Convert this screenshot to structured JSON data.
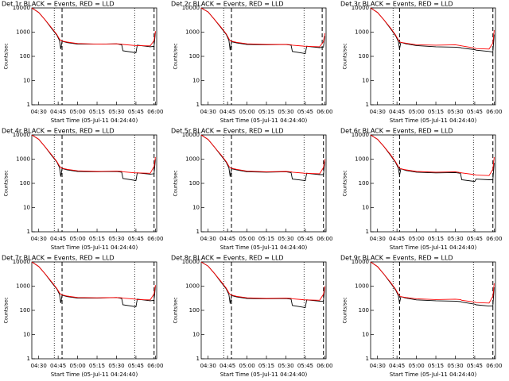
{
  "chart_data": [
    {
      "type": "line",
      "title": "Det 1r BLACK = Events, RED = LLD",
      "x_label": "Start Time (05-Jul-11 04:24:40)",
      "y_label": "Counts/sec",
      "log_y": true,
      "xlim": [
        "04:24:40",
        "06:01"
      ],
      "xticks": [
        "04:30",
        "04:45",
        "05:00",
        "05:15",
        "05:30",
        "05:45",
        "06:00"
      ],
      "ylim": [
        1,
        10000
      ],
      "yticks": [
        1,
        10,
        100,
        1000,
        10000
      ],
      "vlines": [
        {
          "x": "04:42",
          "style": "dotted"
        },
        {
          "x": "04:48",
          "style": "dashed"
        },
        {
          "x": "05:44",
          "style": "dotted"
        },
        {
          "x": "05:59",
          "style": "dashed"
        }
      ],
      "x": [
        "04:24:40",
        "04:30",
        "04:35",
        "04:40",
        "04:44",
        "04:46",
        "04:47",
        "04:48",
        "04:52",
        "05:00",
        "05:15",
        "05:30",
        "05:34",
        "05:35",
        "05:45",
        "05:46",
        "05:56",
        "05:59",
        "06:00"
      ],
      "series": [
        {
          "name": "Events",
          "color": "#000000",
          "values": [
            10000,
            6500,
            3200,
            1400,
            750,
            450,
            200,
            420,
            370,
            320,
            320,
            330,
            300,
            170,
            140,
            290,
            250,
            260,
            1000
          ]
        },
        {
          "name": "LLD",
          "color": "#ff0000",
          "values": [
            10000,
            6500,
            3200,
            1500,
            800,
            520,
            450,
            430,
            390,
            340,
            320,
            330,
            320,
            310,
            280,
            280,
            270,
            450,
            1100
          ]
        }
      ]
    },
    {
      "type": "line",
      "title": "Det 2r BLACK = Events, RED = LLD",
      "x_label": "Start Time (05-Jul-11 04:24:40)",
      "y_label": "Counts/sec",
      "log_y": true,
      "xlim": [
        "04:24:40",
        "06:01"
      ],
      "xticks": [
        "04:30",
        "04:45",
        "05:00",
        "05:15",
        "05:30",
        "05:45",
        "06:00"
      ],
      "ylim": [
        1,
        10000
      ],
      "yticks": [
        1,
        10,
        100,
        1000,
        10000
      ],
      "vlines": [
        {
          "x": "04:42",
          "style": "dotted"
        },
        {
          "x": "04:48",
          "style": "dashed"
        },
        {
          "x": "05:44",
          "style": "dotted"
        },
        {
          "x": "05:58",
          "style": "dashed"
        }
      ],
      "x": [
        "04:24:40",
        "04:30",
        "04:35",
        "04:40",
        "04:44",
        "04:46",
        "04:47",
        "04:48",
        "04:52",
        "05:00",
        "05:15",
        "05:30",
        "05:34",
        "05:35",
        "05:45",
        "05:46",
        "05:56",
        "05:59",
        "06:00"
      ],
      "series": [
        {
          "name": "Events",
          "color": "#000000",
          "values": [
            10000,
            6800,
            3300,
            1500,
            800,
            460,
            180,
            400,
            360,
            310,
            300,
            310,
            290,
            160,
            130,
            260,
            230,
            240,
            700
          ]
        },
        {
          "name": "LLD",
          "color": "#ff0000",
          "values": [
            10000,
            6800,
            3300,
            1600,
            850,
            540,
            440,
            420,
            380,
            330,
            310,
            310,
            300,
            290,
            260,
            260,
            250,
            400,
            900
          ]
        }
      ]
    },
    {
      "type": "line",
      "title": "Det 3r BLACK = Events, RED = LLD",
      "x_label": "Start Time (05-Jul-11 04:24:40)",
      "y_label": "Counts/sec",
      "log_y": true,
      "xlim": [
        "04:24:40",
        "06:01"
      ],
      "xticks": [
        "04:30",
        "04:45",
        "05:00",
        "05:15",
        "05:30",
        "05:45",
        "06:00"
      ],
      "ylim": [
        1,
        10000
      ],
      "yticks": [
        1,
        10,
        100,
        1000,
        10000
      ],
      "vlines": [
        {
          "x": "04:42",
          "style": "dotted"
        },
        {
          "x": "04:47",
          "style": "dashed"
        },
        {
          "x": "05:44",
          "style": "dotted"
        },
        {
          "x": "05:59",
          "style": "dashed"
        }
      ],
      "x": [
        "04:24:40",
        "04:30",
        "04:35",
        "04:40",
        "04:44",
        "04:46",
        "04:47",
        "04:48",
        "04:52",
        "05:00",
        "05:15",
        "05:30",
        "05:34",
        "05:35",
        "05:45",
        "05:46",
        "05:56",
        "05:59",
        "06:00"
      ],
      "series": [
        {
          "name": "Events",
          "color": "#000000",
          "values": [
            10000,
            6500,
            3200,
            1400,
            700,
            420,
            200,
            380,
            330,
            280,
            250,
            240,
            230,
            220,
            190,
            180,
            160,
            150,
            800
          ]
        },
        {
          "name": "LLD",
          "color": "#ff0000",
          "values": [
            10000,
            6500,
            3200,
            1500,
            750,
            480,
            400,
            380,
            350,
            300,
            290,
            300,
            280,
            270,
            220,
            210,
            200,
            350,
            1200
          ]
        }
      ]
    },
    {
      "type": "line",
      "title": "Det 4r BLACK = Events, RED = LLD",
      "x_label": "Start Time (05-Jul-11 04:24:40)",
      "y_label": "Counts/sec",
      "log_y": true,
      "xlim": [
        "04:24:40",
        "06:01"
      ],
      "xticks": [
        "04:30",
        "04:45",
        "05:00",
        "05:15",
        "05:30",
        "05:45",
        "06:00"
      ],
      "ylim": [
        1,
        10000
      ],
      "yticks": [
        1,
        10,
        100,
        1000,
        10000
      ],
      "vlines": [
        {
          "x": "04:42",
          "style": "dotted"
        },
        {
          "x": "04:48",
          "style": "dashed"
        },
        {
          "x": "05:44",
          "style": "dotted"
        },
        {
          "x": "05:59",
          "style": "dashed"
        }
      ],
      "x": [
        "04:24:40",
        "04:30",
        "04:35",
        "04:40",
        "04:44",
        "04:46",
        "04:47",
        "04:48",
        "04:52",
        "05:00",
        "05:15",
        "05:30",
        "05:34",
        "05:35",
        "05:45",
        "05:46",
        "05:56",
        "05:59",
        "06:00"
      ],
      "series": [
        {
          "name": "Events",
          "color": "#000000",
          "values": [
            10000,
            6600,
            3200,
            1400,
            760,
            450,
            190,
            410,
            360,
            310,
            300,
            310,
            290,
            160,
            130,
            270,
            240,
            250,
            1000
          ]
        },
        {
          "name": "LLD",
          "color": "#ff0000",
          "values": [
            10000,
            6600,
            3200,
            1500,
            800,
            520,
            450,
            420,
            380,
            330,
            310,
            320,
            310,
            300,
            270,
            270,
            260,
            500,
            1200
          ]
        }
      ]
    },
    {
      "type": "line",
      "title": "Det 5r BLACK = Events, RED = LLD",
      "x_label": "Start Time (05-Jul-11 04:24:40)",
      "y_label": "Counts/sec",
      "log_y": true,
      "xlim": [
        "04:24:40",
        "06:01"
      ],
      "xticks": [
        "04:30",
        "04:45",
        "05:00",
        "05:15",
        "05:30",
        "05:45",
        "06:00"
      ],
      "ylim": [
        1,
        10000
      ],
      "yticks": [
        1,
        10,
        100,
        1000,
        10000
      ],
      "vlines": [
        {
          "x": "04:42",
          "style": "dotted"
        },
        {
          "x": "04:48",
          "style": "dashed"
        },
        {
          "x": "05:44",
          "style": "dotted"
        },
        {
          "x": "05:59",
          "style": "dashed"
        }
      ],
      "x": [
        "04:24:40",
        "04:30",
        "04:35",
        "04:40",
        "04:44",
        "04:46",
        "04:47",
        "04:48",
        "04:52",
        "05:00",
        "05:15",
        "05:30",
        "05:34",
        "05:35",
        "05:45",
        "05:46",
        "05:56",
        "05:59",
        "06:00"
      ],
      "series": [
        {
          "name": "Events",
          "color": "#000000",
          "values": [
            10000,
            6500,
            3100,
            1400,
            740,
            440,
            190,
            400,
            360,
            300,
            290,
            300,
            280,
            150,
            130,
            260,
            230,
            230,
            800
          ]
        },
        {
          "name": "LLD",
          "color": "#ff0000",
          "values": [
            10000,
            6500,
            3100,
            1500,
            790,
            510,
            440,
            420,
            380,
            320,
            300,
            310,
            300,
            290,
            260,
            260,
            250,
            450,
            1000
          ]
        }
      ]
    },
    {
      "type": "line",
      "title": "Det 6r BLACK = Events, RED = LLD",
      "x_label": "Start Time (05-Jul-11 04:24:40)",
      "y_label": "Counts/sec",
      "log_y": true,
      "xlim": [
        "04:24:40",
        "06:01"
      ],
      "xticks": [
        "04:30",
        "04:45",
        "05:00",
        "05:15",
        "05:30",
        "05:45",
        "06:00"
      ],
      "ylim": [
        1,
        10000
      ],
      "yticks": [
        1,
        10,
        100,
        1000,
        10000
      ],
      "vlines": [
        {
          "x": "04:42",
          "style": "dotted"
        },
        {
          "x": "04:47",
          "style": "dashed"
        },
        {
          "x": "05:44",
          "style": "dotted"
        },
        {
          "x": "05:59",
          "style": "dashed"
        }
      ],
      "x": [
        "04:24:40",
        "04:30",
        "04:35",
        "04:40",
        "04:44",
        "04:46",
        "04:47",
        "04:48",
        "04:52",
        "05:00",
        "05:15",
        "05:30",
        "05:34",
        "05:35",
        "05:45",
        "05:46",
        "05:56",
        "05:59",
        "06:00"
      ],
      "series": [
        {
          "name": "Events",
          "color": "#000000",
          "values": [
            10000,
            6600,
            3300,
            1450,
            720,
            430,
            210,
            400,
            340,
            290,
            270,
            280,
            260,
            140,
            120,
            150,
            140,
            140,
            700
          ]
        },
        {
          "name": "LLD",
          "color": "#ff0000",
          "values": [
            10000,
            6600,
            3300,
            1550,
            770,
            500,
            420,
            400,
            360,
            310,
            290,
            300,
            280,
            270,
            230,
            220,
            210,
            380,
            1200
          ]
        }
      ]
    },
    {
      "type": "line",
      "title": "Det 7r BLACK = Events, RED = LLD",
      "x_label": "Start Time (05-Jul-11 04:24:40)",
      "y_label": "Counts/sec",
      "log_y": true,
      "xlim": [
        "04:24:40",
        "06:01"
      ],
      "xticks": [
        "04:30",
        "04:45",
        "05:00",
        "05:15",
        "05:30",
        "05:45",
        "06:00"
      ],
      "ylim": [
        1,
        10000
      ],
      "yticks": [
        1,
        10,
        100,
        1000,
        10000
      ],
      "vlines": [
        {
          "x": "04:42",
          "style": "dotted"
        },
        {
          "x": "04:48",
          "style": "dashed"
        },
        {
          "x": "05:44",
          "style": "dotted"
        },
        {
          "x": "05:59",
          "style": "dashed"
        }
      ],
      "x": [
        "04:24:40",
        "04:30",
        "04:35",
        "04:40",
        "04:44",
        "04:46",
        "04:47",
        "04:48",
        "04:52",
        "05:00",
        "05:15",
        "05:30",
        "05:34",
        "05:35",
        "05:45",
        "05:46",
        "05:56",
        "05:59",
        "06:00"
      ],
      "series": [
        {
          "name": "Events",
          "color": "#000000",
          "values": [
            10000,
            6500,
            3200,
            1400,
            760,
            460,
            200,
            420,
            370,
            320,
            320,
            340,
            310,
            170,
            140,
            290,
            250,
            260,
            1000
          ]
        },
        {
          "name": "LLD",
          "color": "#ff0000",
          "values": [
            10000,
            6500,
            3200,
            1500,
            800,
            530,
            460,
            440,
            390,
            340,
            330,
            340,
            330,
            320,
            290,
            280,
            270,
            480,
            1100
          ]
        }
      ]
    },
    {
      "type": "line",
      "title": "Det 8r BLACK = Events, RED = LLD",
      "x_label": "Start Time (05-Jul-11 04:24:40)",
      "y_label": "Counts/sec",
      "log_y": true,
      "xlim": [
        "04:24:40",
        "06:01"
      ],
      "xticks": [
        "04:30",
        "04:45",
        "05:00",
        "05:15",
        "05:30",
        "05:45",
        "06:00"
      ],
      "ylim": [
        1,
        10000
      ],
      "yticks": [
        1,
        10,
        100,
        1000,
        10000
      ],
      "vlines": [
        {
          "x": "04:42",
          "style": "dotted"
        },
        {
          "x": "04:48",
          "style": "dashed"
        },
        {
          "x": "05:44",
          "style": "dotted"
        },
        {
          "x": "05:59",
          "style": "dashed"
        }
      ],
      "x": [
        "04:24:40",
        "04:30",
        "04:35",
        "04:40",
        "04:44",
        "04:46",
        "04:47",
        "04:48",
        "04:52",
        "05:00",
        "05:15",
        "05:30",
        "05:34",
        "05:35",
        "05:45",
        "05:46",
        "05:56",
        "05:59",
        "06:00"
      ],
      "series": [
        {
          "name": "Events",
          "color": "#000000",
          "values": [
            10000,
            6700,
            3300,
            1450,
            770,
            450,
            190,
            410,
            360,
            310,
            300,
            310,
            290,
            160,
            130,
            270,
            240,
            240,
            900
          ]
        },
        {
          "name": "LLD",
          "color": "#ff0000",
          "values": [
            10000,
            6700,
            3300,
            1550,
            820,
            530,
            450,
            430,
            380,
            330,
            310,
            320,
            310,
            300,
            270,
            270,
            260,
            460,
            1000
          ]
        }
      ]
    },
    {
      "type": "line",
      "title": "Det 9r BLACK = Events, RED = LLD",
      "x_label": "Start Time (05-Jul-11 04:24:40)",
      "y_label": "Counts/sec",
      "log_y": true,
      "xlim": [
        "04:24:40",
        "06:01"
      ],
      "xticks": [
        "04:30",
        "04:45",
        "05:00",
        "05:15",
        "05:30",
        "05:45",
        "06:00"
      ],
      "ylim": [
        1,
        10000
      ],
      "yticks": [
        1,
        10,
        100,
        1000,
        10000
      ],
      "vlines": [
        {
          "x": "04:42",
          "style": "dotted"
        },
        {
          "x": "04:47",
          "style": "dashed"
        },
        {
          "x": "05:44",
          "style": "dotted"
        },
        {
          "x": "05:59",
          "style": "dashed"
        }
      ],
      "x": [
        "04:24:40",
        "04:30",
        "04:35",
        "04:40",
        "04:44",
        "04:46",
        "04:47",
        "04:48",
        "04:52",
        "05:00",
        "05:15",
        "05:30",
        "05:34",
        "05:35",
        "05:45",
        "05:46",
        "05:56",
        "05:59",
        "06:00"
      ],
      "series": [
        {
          "name": "Events",
          "color": "#000000",
          "values": [
            10000,
            6400,
            3100,
            1350,
            690,
            410,
            200,
            370,
            320,
            270,
            250,
            240,
            230,
            220,
            180,
            170,
            150,
            150,
            900
          ]
        },
        {
          "name": "LLD",
          "color": "#ff0000",
          "values": [
            10000,
            6400,
            3100,
            1450,
            740,
            470,
            400,
            370,
            340,
            300,
            280,
            290,
            280,
            260,
            220,
            210,
            200,
            380,
            1300
          ]
        }
      ]
    }
  ]
}
